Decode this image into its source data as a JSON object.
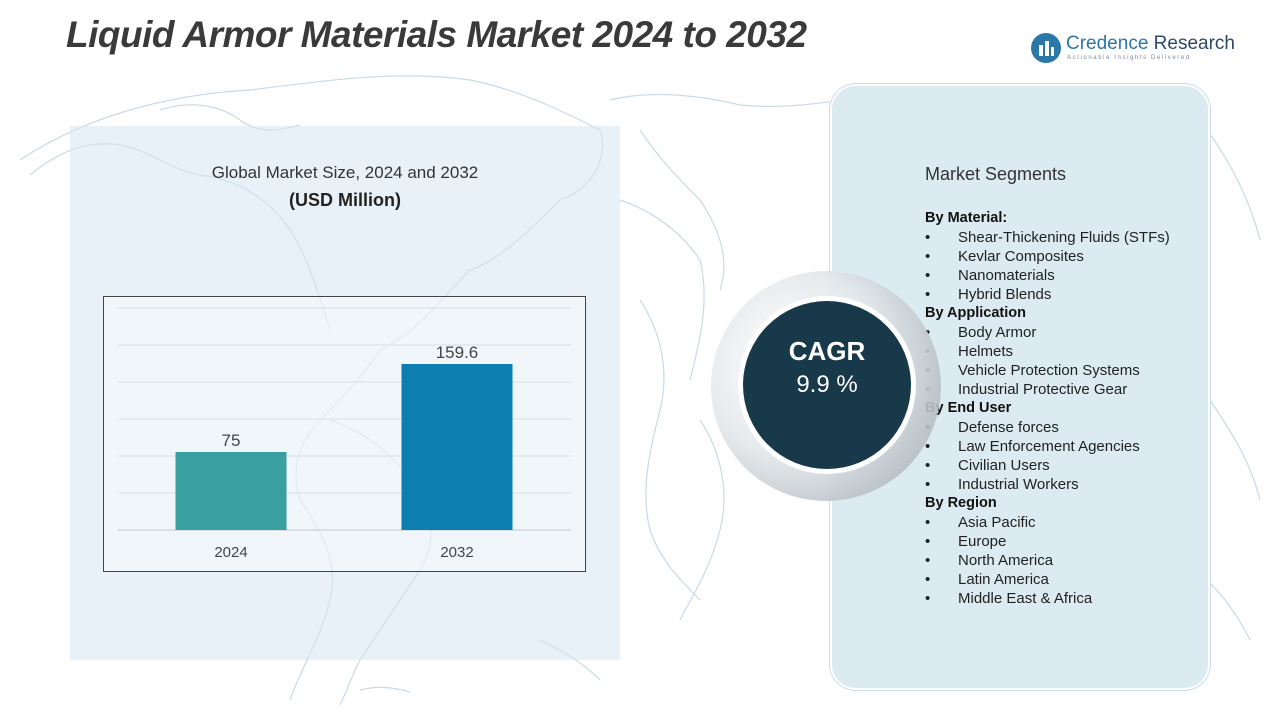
{
  "title": "Liquid Armor Materials Market 2024 to 2032",
  "brand": {
    "name_part1": "Credence",
    "name_part2": "Research",
    "tagline": "Actionable Insights Delivered"
  },
  "chart_data": {
    "type": "bar",
    "title": "Global Market Size, 2024 and 2032",
    "subtitle": "(USD Million)",
    "categories": [
      "2024",
      "2032"
    ],
    "values": [
      75,
      159.6
    ],
    "value_labels": [
      "75",
      "159.6"
    ],
    "colors": [
      "#3a9fa0",
      "#0c7fb0"
    ],
    "ylim": [
      0,
      200
    ],
    "grid": true,
    "xlabel": "",
    "ylabel": ""
  },
  "cagr": {
    "label": "CAGR",
    "value": "9.9 %"
  },
  "segments": {
    "title": "Market Segments",
    "bullet": "•",
    "groups": [
      {
        "heading": "By  Material:",
        "items": [
          "Shear-Thickening Fluids (STFs)",
          "Kevlar Composites",
          "Nanomaterials",
          "Hybrid Blends"
        ]
      },
      {
        "heading": "By Application",
        "items": [
          "Body Armor",
          "Helmets",
          "Vehicle Protection Systems",
          "Industrial Protective Gear"
        ]
      },
      {
        "heading": "By End User",
        "items": [
          "Defense forces",
          "Law Enforcement Agencies",
          "Civilian Users",
          "Industrial Workers"
        ]
      },
      {
        "heading": "By Region",
        "items": [
          "Asia Pacific",
          "Europe",
          "North America",
          "Latin America",
          "Middle East & Africa"
        ]
      }
    ]
  }
}
